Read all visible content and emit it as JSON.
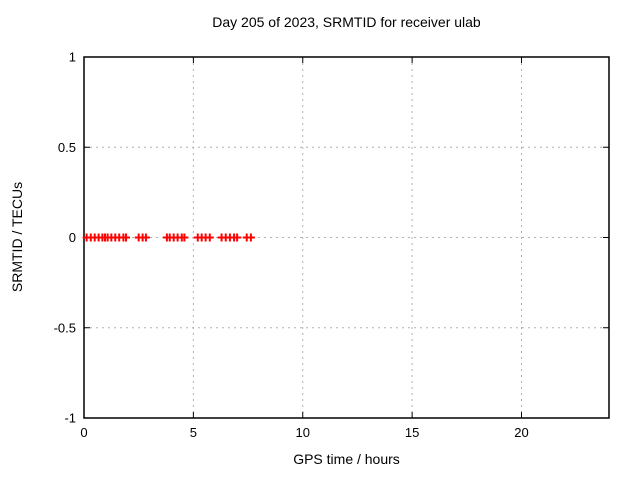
{
  "title": "Day 205 of 2023, SRMTID for receiver ulab",
  "colors": {
    "marker": "#ff0000",
    "grid": "#b0b0b0",
    "axis": "#000000",
    "background": "#ffffff",
    "text": "#000000"
  },
  "chart_data": {
    "type": "scatter",
    "title": "Day 205 of 2023, SRMTID for receiver ulab",
    "xlabel": "GPS time / hours",
    "ylabel": "SRMTID / TECUs",
    "xlim": [
      0,
      24
    ],
    "ylim": [
      -1,
      1
    ],
    "x_ticks": [
      0,
      5,
      10,
      15,
      20
    ],
    "x_tick_labels": [
      "0",
      "5",
      "10",
      "15",
      "20"
    ],
    "y_ticks": [
      -1,
      -0.5,
      0,
      0.5,
      1
    ],
    "y_tick_labels": [
      "-1",
      "-0.5",
      "0",
      "0.5",
      "1"
    ],
    "grid": true,
    "grid_style": "dotted",
    "legend_position": "none",
    "marker": "plus",
    "marker_color": "#ff0000",
    "series": [
      {
        "name": "SRMTID",
        "x": [
          0.12,
          0.31,
          0.49,
          0.67,
          0.84,
          0.96,
          1.08,
          1.25,
          1.43,
          1.61,
          1.8,
          1.92,
          2.5,
          2.68,
          2.83,
          3.79,
          3.92,
          4.1,
          4.28,
          4.47,
          4.59,
          5.2,
          5.38,
          5.56,
          5.75,
          6.29,
          6.48,
          6.67,
          6.86,
          7.0,
          7.44,
          7.63
        ],
        "y": [
          0,
          0,
          0,
          0,
          0,
          0,
          0,
          0,
          0,
          0,
          0,
          0,
          0,
          0,
          0,
          0,
          0,
          0,
          0,
          0,
          0,
          0,
          0,
          0,
          0,
          0,
          0,
          0,
          0,
          0,
          0,
          0
        ]
      }
    ]
  }
}
